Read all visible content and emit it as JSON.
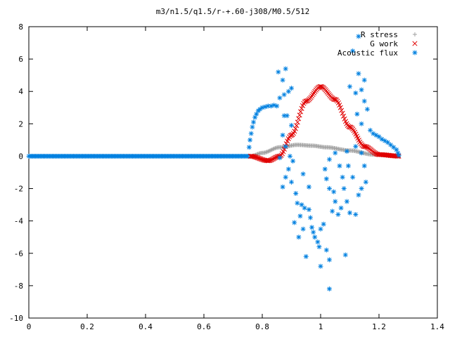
{
  "chart_data": {
    "type": "scatter",
    "title": "m3/n1.5/q1.5/r-+.60-j308/M0.5/512",
    "xlabel": "",
    "ylabel": "",
    "xlim": [
      0,
      1.4
    ],
    "ylim": [
      -10,
      8
    ],
    "x_ticks": [
      "0",
      "0.2",
      "0.4",
      "0.6",
      "0.8",
      "1",
      "1.2",
      "1.4"
    ],
    "y_ticks": [
      "-10",
      "-8",
      "-6",
      "-4",
      "-2",
      "0",
      "2",
      "4",
      "6",
      "8"
    ],
    "grid": false,
    "legend_position": "top-right",
    "series": [
      {
        "name": "R stress",
        "marker": "+",
        "color": "#a0a0a0",
        "x_start": 0.76,
        "x_end": 1.27,
        "samples": [
          {
            "x": 0.76,
            "y": 0.0
          },
          {
            "x": 0.8,
            "y": 0.2
          },
          {
            "x": 0.86,
            "y": 0.55
          },
          {
            "x": 0.92,
            "y": 0.7
          },
          {
            "x": 0.97,
            "y": 0.65
          },
          {
            "x": 1.02,
            "y": 0.55
          },
          {
            "x": 1.1,
            "y": 0.35
          },
          {
            "x": 1.18,
            "y": 0.1
          },
          {
            "x": 1.27,
            "y": 0.0
          }
        ]
      },
      {
        "name": "G work",
        "marker": "×",
        "color": "#e00000",
        "x_start": 0.76,
        "x_end": 1.27,
        "samples": [
          {
            "x": 0.76,
            "y": 0.0
          },
          {
            "x": 0.82,
            "y": -0.28
          },
          {
            "x": 0.86,
            "y": 0.0
          },
          {
            "x": 0.9,
            "y": 1.3
          },
          {
            "x": 0.95,
            "y": 3.4
          },
          {
            "x": 1.0,
            "y": 4.3
          },
          {
            "x": 1.05,
            "y": 3.5
          },
          {
            "x": 1.1,
            "y": 1.8
          },
          {
            "x": 1.15,
            "y": 0.6
          },
          {
            "x": 1.2,
            "y": 0.1
          },
          {
            "x": 1.27,
            "y": 0.0
          }
        ]
      },
      {
        "name": "Acoustic flux",
        "marker": "✳",
        "color": "#0080e0",
        "baseline_x_end": 0.76,
        "points": [
          {
            "x": 0.755,
            "y": 0.55
          },
          {
            "x": 0.758,
            "y": 1.0
          },
          {
            "x": 0.762,
            "y": 1.4
          },
          {
            "x": 0.766,
            "y": 1.8
          },
          {
            "x": 0.77,
            "y": 2.1
          },
          {
            "x": 0.775,
            "y": 2.4
          },
          {
            "x": 0.78,
            "y": 2.6
          },
          {
            "x": 0.786,
            "y": 2.8
          },
          {
            "x": 0.792,
            "y": 2.9
          },
          {
            "x": 0.8,
            "y": 3.0
          },
          {
            "x": 0.81,
            "y": 3.05
          },
          {
            "x": 0.82,
            "y": 3.1
          },
          {
            "x": 0.83,
            "y": 3.1
          },
          {
            "x": 0.84,
            "y": 3.15
          },
          {
            "x": 0.85,
            "y": 3.1
          },
          {
            "x": 0.855,
            "y": 5.2
          },
          {
            "x": 0.88,
            "y": 5.4
          },
          {
            "x": 0.87,
            "y": 4.7
          },
          {
            "x": 0.86,
            "y": 3.6
          },
          {
            "x": 0.875,
            "y": 3.8
          },
          {
            "x": 0.89,
            "y": 4.0
          },
          {
            "x": 0.9,
            "y": 4.2
          },
          {
            "x": 0.875,
            "y": 2.5
          },
          {
            "x": 0.885,
            "y": 2.5
          },
          {
            "x": 0.9,
            "y": 1.9
          },
          {
            "x": 0.87,
            "y": 1.3
          },
          {
            "x": 0.88,
            "y": 0.6
          },
          {
            "x": 0.86,
            "y": -0.1
          },
          {
            "x": 0.895,
            "y": 0.0
          },
          {
            "x": 0.905,
            "y": -0.3
          },
          {
            "x": 0.89,
            "y": -0.8
          },
          {
            "x": 0.88,
            "y": -1.3
          },
          {
            "x": 0.87,
            "y": -1.9
          },
          {
            "x": 0.9,
            "y": -1.6
          },
          {
            "x": 0.915,
            "y": -2.3
          },
          {
            "x": 0.92,
            "y": -2.9
          },
          {
            "x": 0.935,
            "y": -3.0
          },
          {
            "x": 0.945,
            "y": -3.2
          },
          {
            "x": 0.93,
            "y": -3.7
          },
          {
            "x": 0.91,
            "y": -4.1
          },
          {
            "x": 0.96,
            "y": -3.3
          },
          {
            "x": 0.965,
            "y": -3.8
          },
          {
            "x": 0.97,
            "y": -4.4
          },
          {
            "x": 0.975,
            "y": -4.7
          },
          {
            "x": 0.98,
            "y": -5.0
          },
          {
            "x": 0.99,
            "y": -5.3
          },
          {
            "x": 0.995,
            "y": -5.6
          },
          {
            "x": 1.0,
            "y": -4.5
          },
          {
            "x": 0.95,
            "y": -6.2
          },
          {
            "x": 1.0,
            "y": -6.8
          },
          {
            "x": 1.03,
            "y": -6.4
          },
          {
            "x": 1.03,
            "y": -8.2
          },
          {
            "x": 1.02,
            "y": -5.8
          },
          {
            "x": 1.01,
            "y": -4.2
          },
          {
            "x": 1.04,
            "y": -3.4
          },
          {
            "x": 1.05,
            "y": -2.8
          },
          {
            "x": 1.06,
            "y": -3.6
          },
          {
            "x": 1.045,
            "y": -2.2
          },
          {
            "x": 1.03,
            "y": -2.0
          },
          {
            "x": 1.02,
            "y": -1.4
          },
          {
            "x": 1.015,
            "y": -0.8
          },
          {
            "x": 1.03,
            "y": -0.2
          },
          {
            "x": 1.05,
            "y": 0.2
          },
          {
            "x": 1.065,
            "y": -0.6
          },
          {
            "x": 1.075,
            "y": -1.3
          },
          {
            "x": 1.08,
            "y": -2.0
          },
          {
            "x": 1.09,
            "y": -2.8
          },
          {
            "x": 1.07,
            "y": -3.2
          },
          {
            "x": 1.1,
            "y": -3.5
          },
          {
            "x": 1.12,
            "y": -3.6
          },
          {
            "x": 1.13,
            "y": -2.4
          },
          {
            "x": 1.11,
            "y": -1.3
          },
          {
            "x": 1.095,
            "y": -0.6
          },
          {
            "x": 1.09,
            "y": 0.3
          },
          {
            "x": 1.12,
            "y": 0.6
          },
          {
            "x": 1.14,
            "y": 0.2
          },
          {
            "x": 1.15,
            "y": -0.6
          },
          {
            "x": 1.155,
            "y": -1.6
          },
          {
            "x": 1.14,
            "y": -2.0
          },
          {
            "x": 1.085,
            "y": -6.1
          },
          {
            "x": 0.94,
            "y": -1.1
          },
          {
            "x": 0.96,
            "y": -1.9
          },
          {
            "x": 0.94,
            "y": -4.5
          },
          {
            "x": 0.925,
            "y": -5.0
          },
          {
            "x": 1.125,
            "y": 2.6
          },
          {
            "x": 1.14,
            "y": 2.0
          },
          {
            "x": 1.15,
            "y": 3.4
          },
          {
            "x": 1.16,
            "y": 2.9
          },
          {
            "x": 1.17,
            "y": 1.6
          },
          {
            "x": 1.18,
            "y": 1.4
          },
          {
            "x": 1.19,
            "y": 1.3
          },
          {
            "x": 1.2,
            "y": 1.2
          },
          {
            "x": 1.21,
            "y": 1.05
          },
          {
            "x": 1.22,
            "y": 0.95
          },
          {
            "x": 1.23,
            "y": 0.85
          },
          {
            "x": 1.24,
            "y": 0.7
          },
          {
            "x": 1.25,
            "y": 0.55
          },
          {
            "x": 1.26,
            "y": 0.4
          },
          {
            "x": 1.265,
            "y": 0.2
          },
          {
            "x": 1.268,
            "y": 0.05
          },
          {
            "x": 1.15,
            "y": 4.7
          },
          {
            "x": 1.13,
            "y": 5.1
          },
          {
            "x": 1.14,
            "y": 4.1
          },
          {
            "x": 1.12,
            "y": 3.9
          },
          {
            "x": 1.1,
            "y": 4.3
          },
          {
            "x": 1.11,
            "y": 6.5
          },
          {
            "x": 1.13,
            "y": 7.4
          }
        ]
      }
    ]
  }
}
